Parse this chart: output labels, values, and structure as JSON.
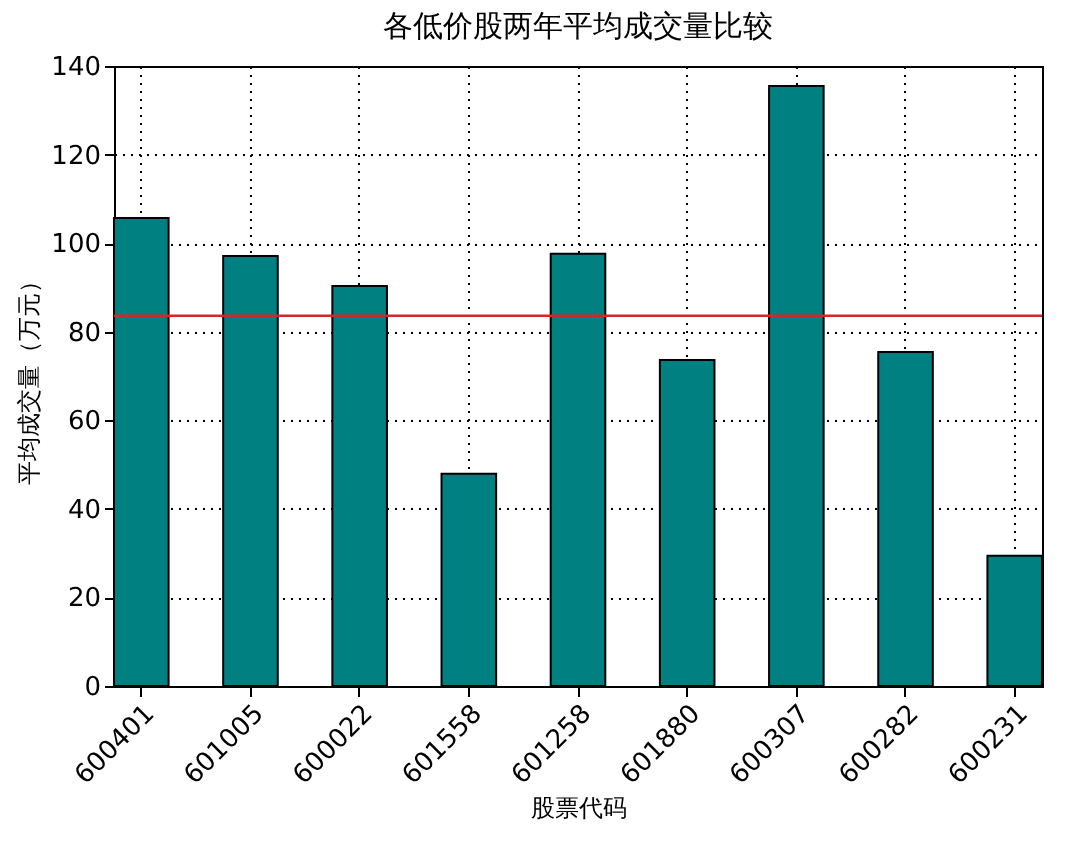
{
  "chart_data": {
    "type": "bar",
    "title": "各低价股两年平均成交量比较",
    "xlabel": "股票代码",
    "ylabel": "平均成交量（万元）",
    "categories": [
      "600401",
      "601005",
      "600022",
      "601558",
      "601258",
      "601880",
      "600307",
      "600282",
      "600231"
    ],
    "values": [
      105.7,
      97.1,
      90.3,
      47.9,
      97.6,
      73.6,
      135.5,
      75.4,
      29.4
    ],
    "color": "#008080",
    "ylim": [
      0,
      140
    ],
    "yticks": [
      0,
      20,
      40,
      60,
      80,
      100,
      120,
      140
    ],
    "grid": true,
    "ref_lines": [
      {
        "axis": "y",
        "value": 83.6,
        "color": "#d62728"
      }
    ]
  }
}
